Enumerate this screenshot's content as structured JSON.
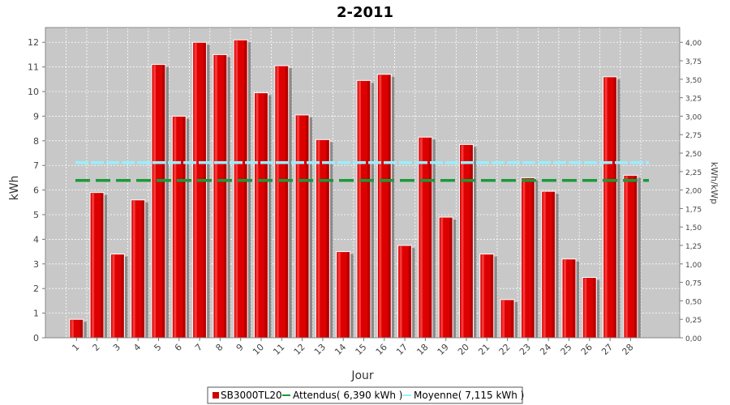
{
  "chart_data": {
    "type": "bar",
    "title": "2-2011",
    "xlabel": "Jour",
    "ylabel": "kWh",
    "y2label": "kWh/kWp",
    "ylim": [
      0,
      12.6
    ],
    "y2lim": [
      0,
      4.2
    ],
    "yticks": [
      "0",
      "1",
      "2",
      "3",
      "4",
      "5",
      "6",
      "7",
      "8",
      "9",
      "10",
      "11",
      "12"
    ],
    "y2ticks": [
      "0,00",
      "0,25",
      "0,50",
      "0,75",
      "1,00",
      "1,25",
      "1,50",
      "1,75",
      "2,00",
      "2,25",
      "2,50",
      "2,75",
      "3,00",
      "3,25",
      "3,50",
      "3,75",
      "4,00"
    ],
    "grid": true,
    "categories": [
      "1",
      "2",
      "3",
      "4",
      "5",
      "6",
      "7",
      "8",
      "9",
      "10",
      "11",
      "12",
      "13",
      "14",
      "15",
      "16",
      "17",
      "18",
      "19",
      "20",
      "21",
      "22",
      "23",
      "24",
      "25",
      "26",
      "27",
      "28"
    ],
    "series": [
      {
        "name": "SB3000TL20",
        "kind": "bar",
        "color": "#dd0000",
        "values": [
          0.75,
          5.9,
          3.4,
          5.6,
          11.1,
          9.0,
          12.0,
          11.5,
          12.1,
          9.95,
          11.05,
          9.05,
          8.05,
          3.5,
          10.45,
          10.7,
          3.75,
          8.15,
          4.9,
          7.85,
          3.4,
          1.55,
          6.5,
          5.95,
          3.2,
          2.45,
          10.6,
          6.6
        ]
      },
      {
        "name": "Attendus( 6,390 kWh )",
        "kind": "line",
        "style": "dashed",
        "color": "#1a9a3a",
        "value": 6.39
      },
      {
        "name": "Moyenne( 7,115 kWh )",
        "kind": "line",
        "style": "dashed",
        "color": "#99eeff",
        "value": 7.115
      }
    ],
    "legend_position": "bottom"
  }
}
